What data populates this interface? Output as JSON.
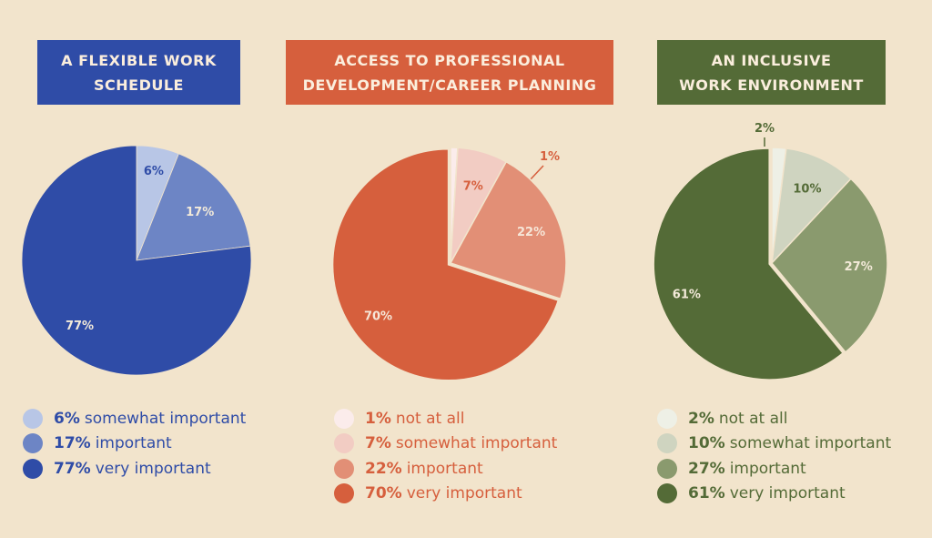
{
  "chart_data": [
    {
      "type": "pie",
      "title_lines": [
        "A FLEXIBLE WORK",
        "SCHEDULE"
      ],
      "title_bg": "#2f4ca7",
      "slices": [
        {
          "label": "somewhat important",
          "value": 6,
          "pct_label": "6%",
          "color": "#b8c6e6",
          "text_color": "#2f4ca7"
        },
        {
          "label": "important",
          "value": 17,
          "pct_label": "17%",
          "color": "#6d85c5",
          "text_color": "#f3ead9"
        },
        {
          "label": "very important",
          "value": 77,
          "pct_label": "77%",
          "color": "#2f4ca7",
          "text_color": "#f3ead9"
        }
      ],
      "legend_color": "#2f4ca7"
    },
    {
      "type": "pie",
      "title_lines": [
        "ACCESS TO PROFESSIONAL",
        "DEVELOPMENT/CAREER PLANNING"
      ],
      "title_bg": "#d65f3d",
      "slices": [
        {
          "label": "not at all",
          "value": 1,
          "pct_label": "1%",
          "color": "#fbeceb",
          "text_color": "#d65f3d"
        },
        {
          "label": "somewhat important",
          "value": 7,
          "pct_label": "7%",
          "color": "#f2ccc3",
          "text_color": "#d65f3d"
        },
        {
          "label": "important",
          "value": 22,
          "pct_label": "22%",
          "color": "#e28f76",
          "text_color": "#f6e6d8"
        },
        {
          "label": "very important",
          "value": 70,
          "pct_label": "70%",
          "color": "#d65f3d",
          "text_color": "#f6e6d8"
        }
      ],
      "legend_color": "#d65f3d"
    },
    {
      "type": "pie",
      "title_lines": [
        "AN INCLUSIVE",
        "WORK ENVIRONMENT"
      ],
      "title_bg": "#546b37",
      "slices": [
        {
          "label": "not at all",
          "value": 2,
          "pct_label": "2%",
          "color": "#eef0e6",
          "text_color": "#546b37"
        },
        {
          "label": "somewhat important",
          "value": 10,
          "pct_label": "10%",
          "color": "#cfd4c0",
          "text_color": "#546b37"
        },
        {
          "label": "important",
          "value": 27,
          "pct_label": "27%",
          "color": "#8a9a6e",
          "text_color": "#f3ead9"
        },
        {
          "label": "very important",
          "value": 61,
          "pct_label": "61%",
          "color": "#546b37",
          "text_color": "#f3ead9"
        }
      ],
      "legend_color": "#546b37"
    }
  ]
}
